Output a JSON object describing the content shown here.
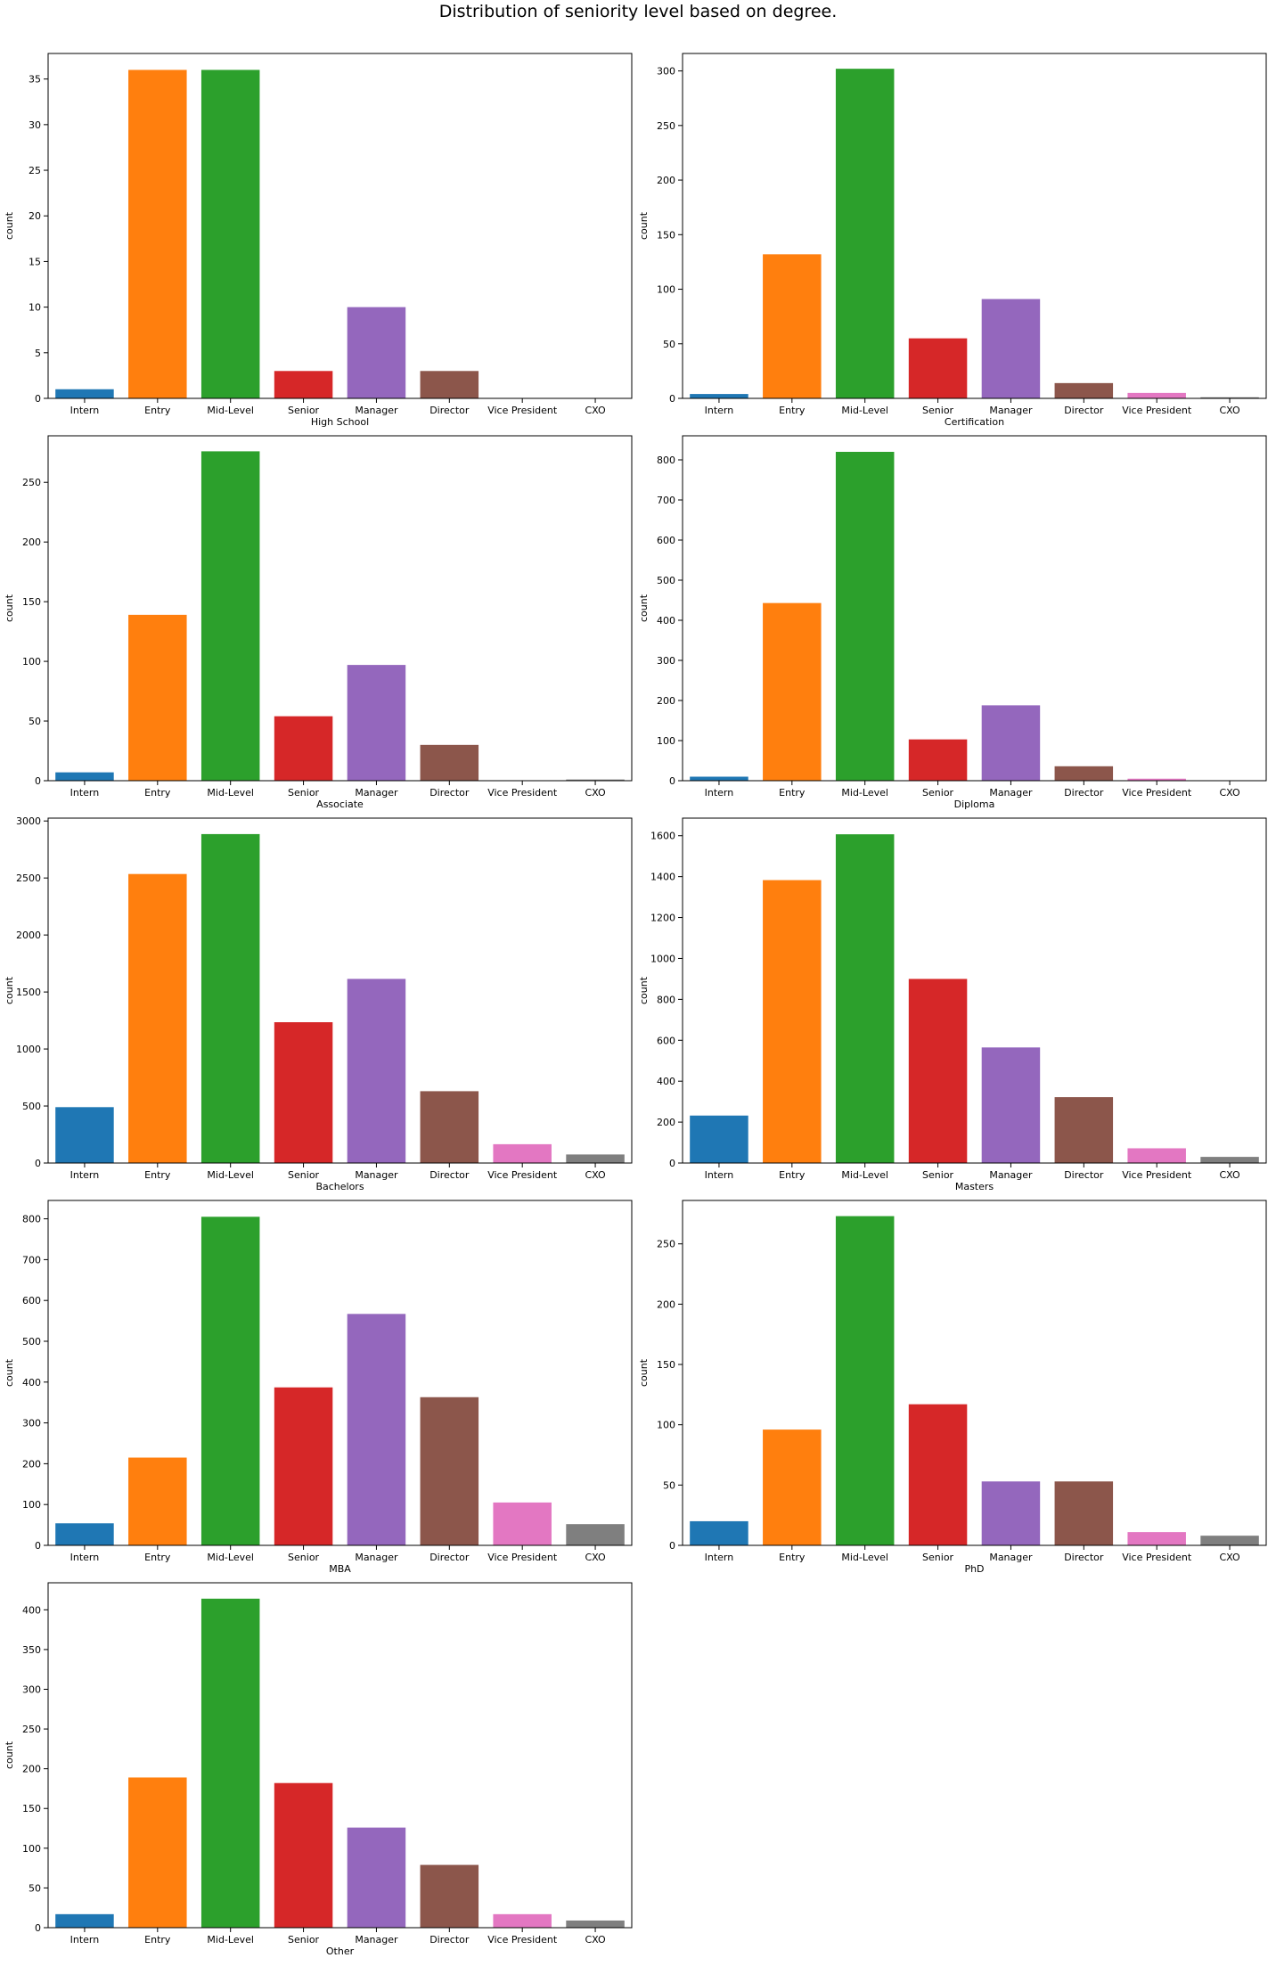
{
  "figure": {
    "suptitle": "Distribution of seniority level based on degree."
  },
  "categories": [
    "Intern",
    "Entry",
    "Mid-Level",
    "Senior",
    "Manager",
    "Director",
    "Vice President",
    "CXO"
  ],
  "colors": [
    "#1f77b4",
    "#ff7f0e",
    "#2ca02c",
    "#d62728",
    "#9467bd",
    "#8c564b",
    "#e377c2",
    "#7f7f7f"
  ],
  "chart_data": [
    {
      "type": "bar",
      "xlabel": "High School",
      "ylabel": "count",
      "ylim": [
        0,
        37.8
      ],
      "yticks": [
        0,
        5,
        10,
        15,
        20,
        25,
        30,
        35
      ],
      "values": [
        1,
        36,
        36,
        3,
        10,
        3,
        0,
        0
      ]
    },
    {
      "type": "bar",
      "xlabel": "Certification",
      "ylabel": "count",
      "ylim": [
        0,
        316
      ],
      "yticks": [
        0,
        50,
        100,
        150,
        200,
        250,
        300
      ],
      "values": [
        4,
        132,
        302,
        55,
        91,
        14,
        5,
        1
      ]
    },
    {
      "type": "bar",
      "xlabel": "Associate",
      "ylabel": "count",
      "ylim": [
        0,
        289
      ],
      "yticks": [
        0,
        50,
        100,
        150,
        200,
        250
      ],
      "values": [
        7,
        139,
        276,
        54,
        97,
        30,
        0,
        1
      ]
    },
    {
      "type": "bar",
      "xlabel": "Diploma",
      "ylabel": "count",
      "ylim": [
        0,
        860
      ],
      "yticks": [
        0,
        100,
        200,
        300,
        400,
        500,
        600,
        700,
        800
      ],
      "values": [
        10,
        443,
        820,
        103,
        188,
        36,
        5,
        1
      ]
    },
    {
      "type": "bar",
      "xlabel": "Bachelors",
      "ylabel": "count",
      "ylim": [
        0,
        3025
      ],
      "yticks": [
        0,
        500,
        1000,
        1500,
        2000,
        2500,
        3000
      ],
      "values": [
        490,
        2535,
        2885,
        1235,
        1615,
        630,
        165,
        75
      ]
    },
    {
      "type": "bar",
      "xlabel": "Masters",
      "ylabel": "count",
      "ylim": [
        0,
        1686
      ],
      "yticks": [
        0,
        200,
        400,
        600,
        800,
        1000,
        1200,
        1400,
        1600
      ],
      "values": [
        232,
        1383,
        1607,
        900,
        565,
        322,
        72,
        30
      ]
    },
    {
      "type": "bar",
      "xlabel": "MBA",
      "ylabel": "count",
      "ylim": [
        0,
        845
      ],
      "yticks": [
        0,
        100,
        200,
        300,
        400,
        500,
        600,
        700,
        800
      ],
      "values": [
        54,
        215,
        805,
        387,
        567,
        363,
        105,
        52
      ]
    },
    {
      "type": "bar",
      "xlabel": "PhD",
      "ylabel": "count",
      "ylim": [
        0,
        286
      ],
      "yticks": [
        0,
        50,
        100,
        150,
        200,
        250
      ],
      "values": [
        20,
        96,
        273,
        117,
        53,
        53,
        11,
        8
      ]
    },
    {
      "type": "bar",
      "xlabel": "Other",
      "ylabel": "count",
      "ylim": [
        0,
        434
      ],
      "yticks": [
        0,
        50,
        100,
        150,
        200,
        250,
        300,
        350,
        400
      ],
      "values": [
        17,
        189,
        414,
        182,
        126,
        79,
        17,
        9
      ]
    }
  ]
}
